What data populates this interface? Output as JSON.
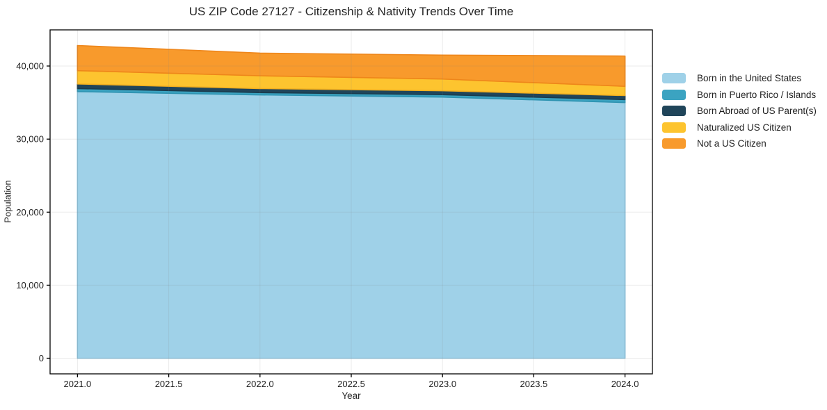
{
  "title": "US ZIP Code 27127 - Citizenship & Nativity Trends Over Time",
  "chart_data": {
    "type": "area",
    "stacked": true,
    "title": "US ZIP Code 27127 - Citizenship & Nativity Trends Over Time",
    "xlabel": "Year",
    "ylabel": "Population",
    "x": [
      2021,
      2022,
      2023,
      2024
    ],
    "series": [
      {
        "name": "Born in the United States",
        "color": "#9fd1e8",
        "edge": "#8ac2dc",
        "values": [
          36500,
          36050,
          35750,
          35000
        ]
      },
      {
        "name": "Born in Puerto Rico / Islands",
        "color": "#3ba3c1",
        "edge": "#2e93b1",
        "values": [
          420,
          320,
          330,
          410
        ]
      },
      {
        "name": "Born Abroad of US Parent(s)",
        "color": "#20455a",
        "edge": "#1a3b4d",
        "values": [
          630,
          550,
          540,
          550
        ]
      },
      {
        "name": "Naturalized US Citizen",
        "color": "#fdc42f",
        "edge": "#f4b01f",
        "values": [
          1820,
          1750,
          1600,
          1270
        ]
      },
      {
        "name": "Not a US Citizen",
        "color": "#f89a2c",
        "edge": "#ee861a",
        "values": [
          3440,
          3100,
          3280,
          4140
        ]
      }
    ],
    "xlim": [
      2020.85,
      2024.15
    ],
    "ylim": [
      -2140,
      44950
    ],
    "xticks": [
      2021.0,
      2021.5,
      2022.0,
      2022.5,
      2023.0,
      2023.5,
      2024.0
    ],
    "yticks": [
      0,
      10000,
      20000,
      30000,
      40000
    ],
    "grid": true,
    "legend_position": "right-outside",
    "colors": {
      "spine": "#000000",
      "gridline": "#e9e9e9",
      "tick_text": "#1f1f1f"
    }
  }
}
